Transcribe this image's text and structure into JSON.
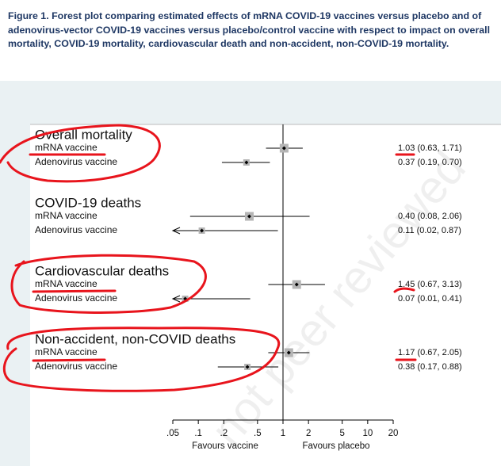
{
  "chart_data": {
    "type": "forest",
    "title": "Figure 1. Forest plot comparing estimated effects of mRNA COVID-19 vaccines versus placebo and of adenovirus-vector COVID-19 vaccines versus placebo/control vaccine with respect to impact on overall mortality, COVID-19 mortality, cardiovascular death and non-accident, non-COVID-19 mortality.",
    "watermark": "not peer reviewed",
    "x_label_left": "Favours vaccine",
    "x_label_right": "Favours placebo",
    "log_x": true,
    "xlim": [
      0.05,
      20
    ],
    "xticks": [
      {
        "value": 0.05,
        "label": ".05"
      },
      {
        "value": 0.1,
        "label": ".1"
      },
      {
        "value": 0.2,
        "label": ".2"
      },
      {
        "value": 0.5,
        "label": ".5"
      },
      1,
      2,
      5,
      10,
      20
    ],
    "groups": [
      {
        "name": "Overall mortality",
        "rows": [
          {
            "name": "mRNA vaccine",
            "value": 1.03,
            "lower": 0.63,
            "upper": 1.71,
            "value_label": "1.03 (0.63, 1.71)"
          },
          {
            "name": "Adenovirus vaccine",
            "value": 0.37,
            "lower": 0.19,
            "upper": 0.7,
            "value_label": "0.37 (0.19, 0.70)"
          }
        ]
      },
      {
        "name": "COVID-19 deaths",
        "rows": [
          {
            "name": "mRNA vaccine",
            "value": 0.4,
            "lower": 0.08,
            "upper": 2.06,
            "value_label": "0.40 (0.08, 2.06)"
          },
          {
            "name": "Adenovirus vaccine",
            "value": 0.11,
            "lower": 0.02,
            "upper": 0.87,
            "value_label": "0.11 (0.02, 0.87)"
          }
        ]
      },
      {
        "name": "Cardiovascular deaths",
        "rows": [
          {
            "name": "mRNA vaccine",
            "value": 1.45,
            "lower": 0.67,
            "upper": 3.13,
            "value_label": "1.45 (0.67, 3.13)"
          },
          {
            "name": "Adenovirus vaccine",
            "value": 0.07,
            "lower": 0.01,
            "upper": 0.41,
            "value_label": "0.07 (0.01, 0.41)"
          }
        ]
      },
      {
        "name": "Non-accident, non-COVID deaths",
        "rows": [
          {
            "name": "mRNA vaccine",
            "value": 1.17,
            "lower": 0.67,
            "upper": 2.05,
            "value_label": "1.17 (0.67, 2.05)"
          },
          {
            "name": "Adenovirus vaccine",
            "value": 0.38,
            "lower": 0.17,
            "upper": 0.88,
            "value_label": "0.38 (0.17, 0.88)"
          }
        ]
      }
    ]
  }
}
